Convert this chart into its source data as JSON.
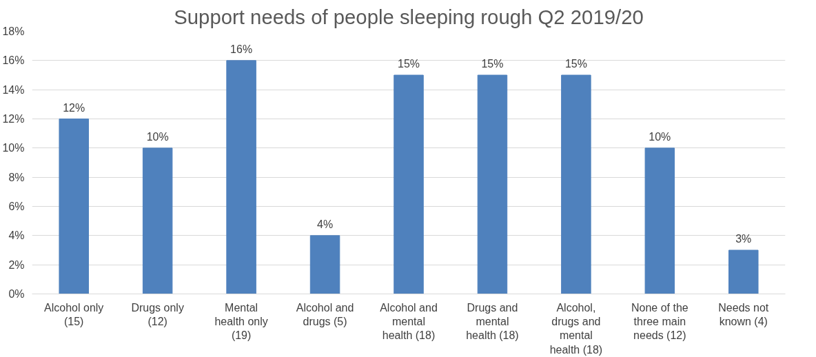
{
  "chart_data": {
    "type": "bar",
    "title": "Support needs of people sleeping rough Q2 2019/20",
    "categories": [
      "Alcohol only (15)",
      "Drugs only (12)",
      "Mental health only (19)",
      "Alcohol and drugs (5)",
      "Alcohol and mental health (18)",
      "Drugs and mental health (18)",
      "Alcohol, drugs and mental health (18)",
      "None of the three main needs (12)",
      "Needs not known (4)"
    ],
    "values": [
      12,
      10,
      16,
      4,
      15,
      15,
      15,
      10,
      3
    ],
    "value_labels": [
      "12%",
      "10%",
      "16%",
      "4%",
      "15%",
      "15%",
      "15%",
      "10%",
      "3%"
    ],
    "color": "#4f81bd",
    "ylim": [
      0,
      18
    ],
    "yticks": [
      {
        "value": 0,
        "label": "0%"
      },
      {
        "value": 2,
        "label": "2%"
      },
      {
        "value": 4,
        "label": "4%"
      },
      {
        "value": 6,
        "label": "6%"
      },
      {
        "value": 8,
        "label": "8%"
      },
      {
        "value": 10,
        "label": "10%"
      },
      {
        "value": 12,
        "label": "12%"
      },
      {
        "value": 14,
        "label": "14%"
      },
      {
        "value": 16,
        "label": "16%"
      },
      {
        "value": 18,
        "label": "18%"
      }
    ],
    "grid": "y"
  }
}
